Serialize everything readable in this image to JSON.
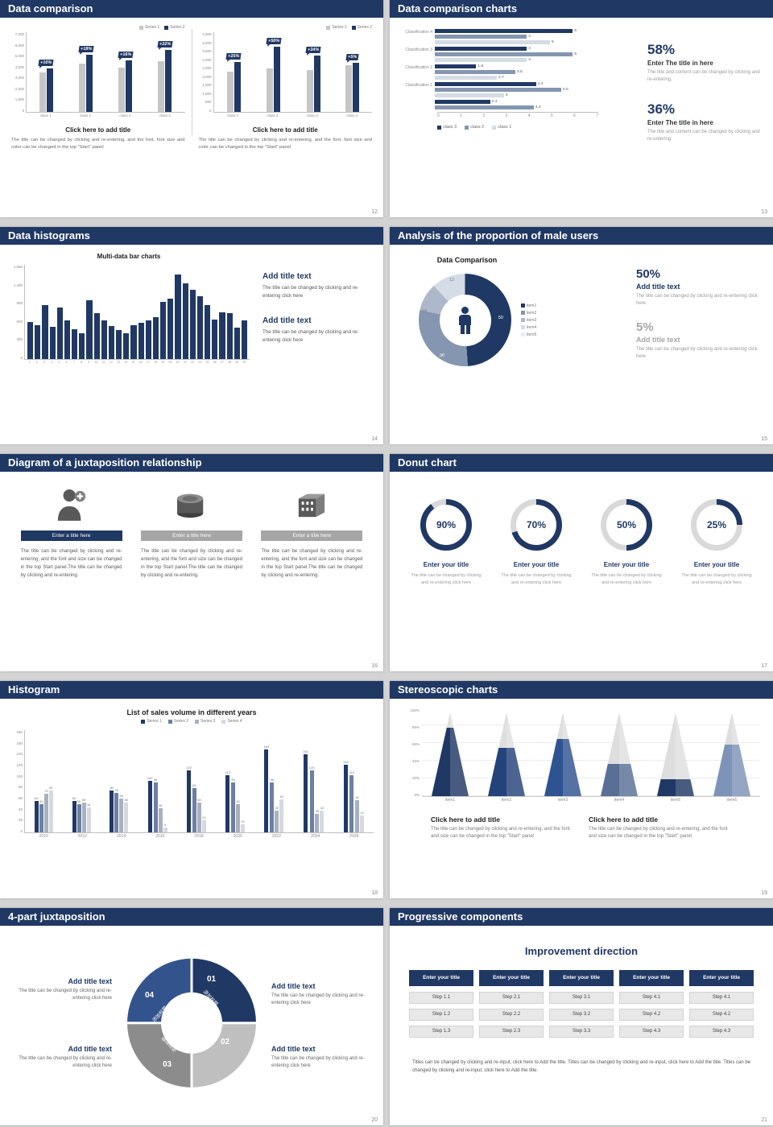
{
  "colors": {
    "navy": "#203864",
    "mid_blue": "#8496b0",
    "light_blue": "#adb9ca",
    "pale_blue": "#d6dce5",
    "bar_gray": "#c6c6c6",
    "gray_text": "#7f7f7f"
  },
  "slides": [
    {
      "title": "Data comparison",
      "page": "12",
      "legend": [
        "Series 1",
        "Series 2"
      ],
      "charts": [
        {
          "y_ticks": [
            "7,000",
            "6,000",
            "5,000",
            "4,000",
            "3,000",
            "2,000",
            "1,000",
            "0"
          ],
          "ymax": 7000,
          "categories": [
            "class 1",
            "class 2",
            "class 3",
            "class 4"
          ],
          "series1": [
            3800,
            4700,
            4300,
            4900
          ],
          "series2": [
            4200,
            5550,
            5000,
            6000
          ],
          "badges": [
            "+10%",
            "+18%",
            "+16%",
            "+22%"
          ],
          "caption_title": "Click here to add title",
          "caption_text": "The title can be changed by clicking and re-entering, and the font, font size and color can be changed in the top \"Start\" panel"
        },
        {
          "y_ticks": [
            "4,500",
            "4,000",
            "3,500",
            "3,000",
            "2,500",
            "2,000",
            "1,500",
            "1,000",
            "500",
            "0"
          ],
          "ymax": 4500,
          "categories": [
            "class 1",
            "class 2",
            "class 3",
            "class 4"
          ],
          "series1": [
            2500,
            2700,
            2600,
            2900
          ],
          "series2": [
            3125,
            4050,
            3480,
            3050
          ],
          "badges": [
            "+25%",
            "+50%",
            "+34%",
            "+5%"
          ],
          "caption_title": "Click here to add title",
          "caption_text": "The title can be changed by clicking and re-entering, and the font, font size and color can be changed in the top \"Start\" panel"
        }
      ]
    },
    {
      "title": "Data comparison charts",
      "page": "13",
      "chart": {
        "xmax": 7,
        "x_ticks": [
          "0",
          "1",
          "2",
          "3",
          "4",
          "5",
          "6",
          "7"
        ],
        "rows": [
          {
            "label": "Classification 4",
            "values": [
              6,
              4,
              5
            ]
          },
          {
            "label": "Classification 3",
            "values": [
              4,
              6,
              4
            ]
          },
          {
            "label": "Classification 2",
            "values": [
              1.8,
              3.5,
              2.7
            ]
          },
          {
            "label": "Classification 1",
            "values": [
              4.4,
              5.5,
              3
            ]
          },
          {
            "label": "",
            "values": [
              2.4,
              4.3
            ]
          }
        ],
        "legend": [
          "class 3",
          "class 2",
          "class 1"
        ]
      },
      "stats": [
        {
          "pct": "58%",
          "title": "Enter The title in here",
          "desc": "The title and content can be changed by clicking and re-entering."
        },
        {
          "pct": "36%",
          "title": "Enter The title in here",
          "desc": "The title and content can be changed by clicking and re-entering."
        }
      ]
    },
    {
      "title": "Data histograms",
      "page": "14",
      "chart": {
        "title": "Multi-data bar charts",
        "y_ticks": [
          "1,500",
          "1,200",
          "900",
          "600",
          "300",
          "0"
        ],
        "ymax": 1500,
        "x_labels": [
          "1",
          "2",
          "3",
          "4",
          "5",
          "6",
          "7",
          "8",
          "9",
          "10",
          "11",
          "12",
          "13",
          "14",
          "15",
          "16",
          "17",
          "18",
          "19",
          "20",
          "21",
          "22",
          "23",
          "24",
          "25",
          "26",
          "27",
          "28",
          "29",
          "30"
        ],
        "values": [
          620,
          560,
          900,
          540,
          860,
          640,
          500,
          430,
          980,
          760,
          640,
          550,
          480,
          430,
          560,
          600,
          640,
          700,
          950,
          1010,
          1400,
          1260,
          1150,
          1050,
          900,
          650,
          780,
          760,
          520,
          640
        ]
      },
      "blocks": [
        {
          "title": "Add title text",
          "desc": "The title can be changed by clicking and re-entering click here"
        },
        {
          "title": "Add title text",
          "desc": "The title can be changed by clicking and re-entering click here"
        }
      ]
    },
    {
      "title": "Analysis of the proportion of male users",
      "page": "15",
      "chart": {
        "title": "Data Comparison",
        "segments": [
          {
            "label": "50",
            "value": 50,
            "color": "#203864"
          },
          {
            "label": "30",
            "value": 30,
            "color": "#8496b0"
          },
          {
            "label": "10",
            "value": 10,
            "color": "#adb9ca"
          },
          {
            "label": "12",
            "value": 12,
            "color": "#d6dce5"
          }
        ],
        "legend": [
          {
            "label": "item1",
            "color": "#203864"
          },
          {
            "label": "item2",
            "color": "#8496b0"
          },
          {
            "label": "item3",
            "color": "#adb9ca"
          },
          {
            "label": "item4",
            "color": "#d6dce5"
          },
          {
            "label": "item5",
            "color": "#e9edf2"
          }
        ]
      },
      "stats": [
        {
          "pct": "50%",
          "title": "Add title text",
          "desc": "The title can be changed by clicking and re-entering click here",
          "muted": false
        },
        {
          "pct": "5%",
          "title": "Add title text",
          "desc": "The title can be changed by clicking and re-entering click here",
          "muted": true
        }
      ]
    },
    {
      "title": "Diagram of a juxtaposition relationship",
      "page": "16",
      "items": [
        {
          "icon": "nurse-icon",
          "bar_label": "Enter a title here",
          "bar_style": "navy",
          "desc": "The title can be changed by clicking and re-entering, and the font and size can be changed in the top Start panel.The title can be changed by clicking and re-entering."
        },
        {
          "icon": "database-icon",
          "bar_label": "Enter a title here",
          "bar_style": "gray",
          "desc": "The title can be changed by clicking and re-entering, and the font and size can be changed in the top Start panel.The title can be changed by clicking and re-entering."
        },
        {
          "icon": "building-icon",
          "bar_label": "Enter a title here",
          "bar_style": "gray",
          "desc": "The title can be changed by clicking and re-entering, and the font and size can be changed in the top Start panel.The title can be changed by clicking and re-entering."
        }
      ]
    },
    {
      "title": "Donut chart",
      "page": "17",
      "donuts": [
        {
          "pct": 90,
          "label": "90%",
          "title": "Enter your title",
          "desc": "The title can be changed by clicking and re-entering click here"
        },
        {
          "pct": 70,
          "label": "70%",
          "title": "Enter your title",
          "desc": "The title can be changed by clicking and re-entering click here"
        },
        {
          "pct": 50,
          "label": "50%",
          "title": "Enter your title",
          "desc": "The title can be changed by clicking and re-entering click here"
        },
        {
          "pct": 25,
          "label": "25%",
          "title": "Enter your title",
          "desc": "The title can be changed by clicking and re-entering click here"
        }
      ]
    },
    {
      "title": "Histogram",
      "page": "18",
      "chart": {
        "title": "List of sales volume in different years",
        "y_ticks": [
          "180",
          "160",
          "140",
          "120",
          "100",
          "80",
          "60",
          "40",
          "20",
          "0"
        ],
        "ymax": 180,
        "categories": [
          "2010",
          "2012",
          "2014",
          "2016",
          "2018",
          "2020",
          "2022",
          "2024",
          "2026"
        ],
        "series": [
          {
            "name": "Series 1",
            "color": "#203864",
            "values": [
              60,
              60,
              80,
              100,
              120,
              110,
              160,
              150,
              130
            ]
          },
          {
            "name": "Series 2",
            "color": "#6b80a3",
            "values": [
              55,
              55,
              76,
              96,
              85,
              96,
              96,
              120,
              110
            ]
          },
          {
            "name": "Series 3",
            "color": "#a9b1be",
            "values": [
              75,
              58,
              65,
              46,
              58,
              55,
              42,
              35,
              62
            ]
          },
          {
            "name": "Series 4",
            "color": "#d5d9e0",
            "values": [
              80,
              48,
              58,
              9,
              24,
              16,
              63,
              42,
              32
            ]
          }
        ]
      }
    },
    {
      "title": "Stereoscopic charts",
      "page": "19",
      "chart": {
        "y_ticks": [
          "100%",
          "80%",
          "60%",
          "40%",
          "20%",
          "0%"
        ],
        "categories": [
          "item1",
          "item2",
          "item3",
          "item4",
          "item5",
          "item6"
        ],
        "fills": [
          82,
          58,
          68,
          38,
          20,
          62
        ],
        "cone_colors": [
          "#1f3864",
          "#24437a",
          "#2f5390",
          "#5a6f96",
          "#203864",
          "#7d93b8"
        ]
      },
      "blocks": [
        {
          "title": "Click here to add title",
          "desc": "The title can be changed by clicking and re-entering, and the font and size can be changed in the top \"Start\" panel"
        },
        {
          "title": "Click here to add title",
          "desc": "The title can be changed by clicking and re-entering, and the font and size can be changed in the top \"Start\" panel"
        }
      ]
    },
    {
      "title": "4-part juxtaposition",
      "page": "20",
      "ring": {
        "segments": [
          {
            "num": "01",
            "label": "添加标题",
            "color": "#203864"
          },
          {
            "num": "02",
            "label": "添加标题",
            "color": "#bfbfbf"
          },
          {
            "num": "03",
            "label": "添加标题",
            "color": "#8c8c8c"
          },
          {
            "num": "04",
            "label": "添加标题",
            "color": "#33538c"
          }
        ]
      },
      "blocks": [
        {
          "title": "Add title text",
          "desc": "The title can be changed by clicking and re-entering click here"
        },
        {
          "title": "Add title text",
          "desc": "The title can be changed by clicking and re-entering click here"
        },
        {
          "title": "Add title text",
          "desc": "The title can be changed by clicking and re-entering click here"
        },
        {
          "title": "Add title text",
          "desc": "The title can be changed by clicking and re-entering click here"
        }
      ]
    },
    {
      "title": "Progressive components",
      "page": "21",
      "heading": "Improvement direction",
      "columns": [
        {
          "header": "Enter your title",
          "steps": [
            "Step 1.1",
            "Step 1.2",
            "Step 1.3"
          ]
        },
        {
          "header": "Enter your title",
          "steps": [
            "Step 2.1",
            "Step 2.2",
            "Step 2.3"
          ]
        },
        {
          "header": "Enter your title",
          "steps": [
            "Step 3.1",
            "Step 3.2",
            "Step 3.3"
          ]
        },
        {
          "header": "Enter your title",
          "steps": [
            "Step 4.1",
            "Step 4.2",
            "Step 4.3"
          ]
        },
        {
          "header": "Enter your title",
          "steps": [
            "Step 4.1",
            "Step 4.2",
            "Step 4.3"
          ]
        }
      ],
      "footer": "Titles can be changed by clicking and re-input, click here to Add the title. Titles can be changed by clicking and re-input, click here to Add the title. Titles can be changed by clicking and re-input, click here to Add the title."
    }
  ]
}
